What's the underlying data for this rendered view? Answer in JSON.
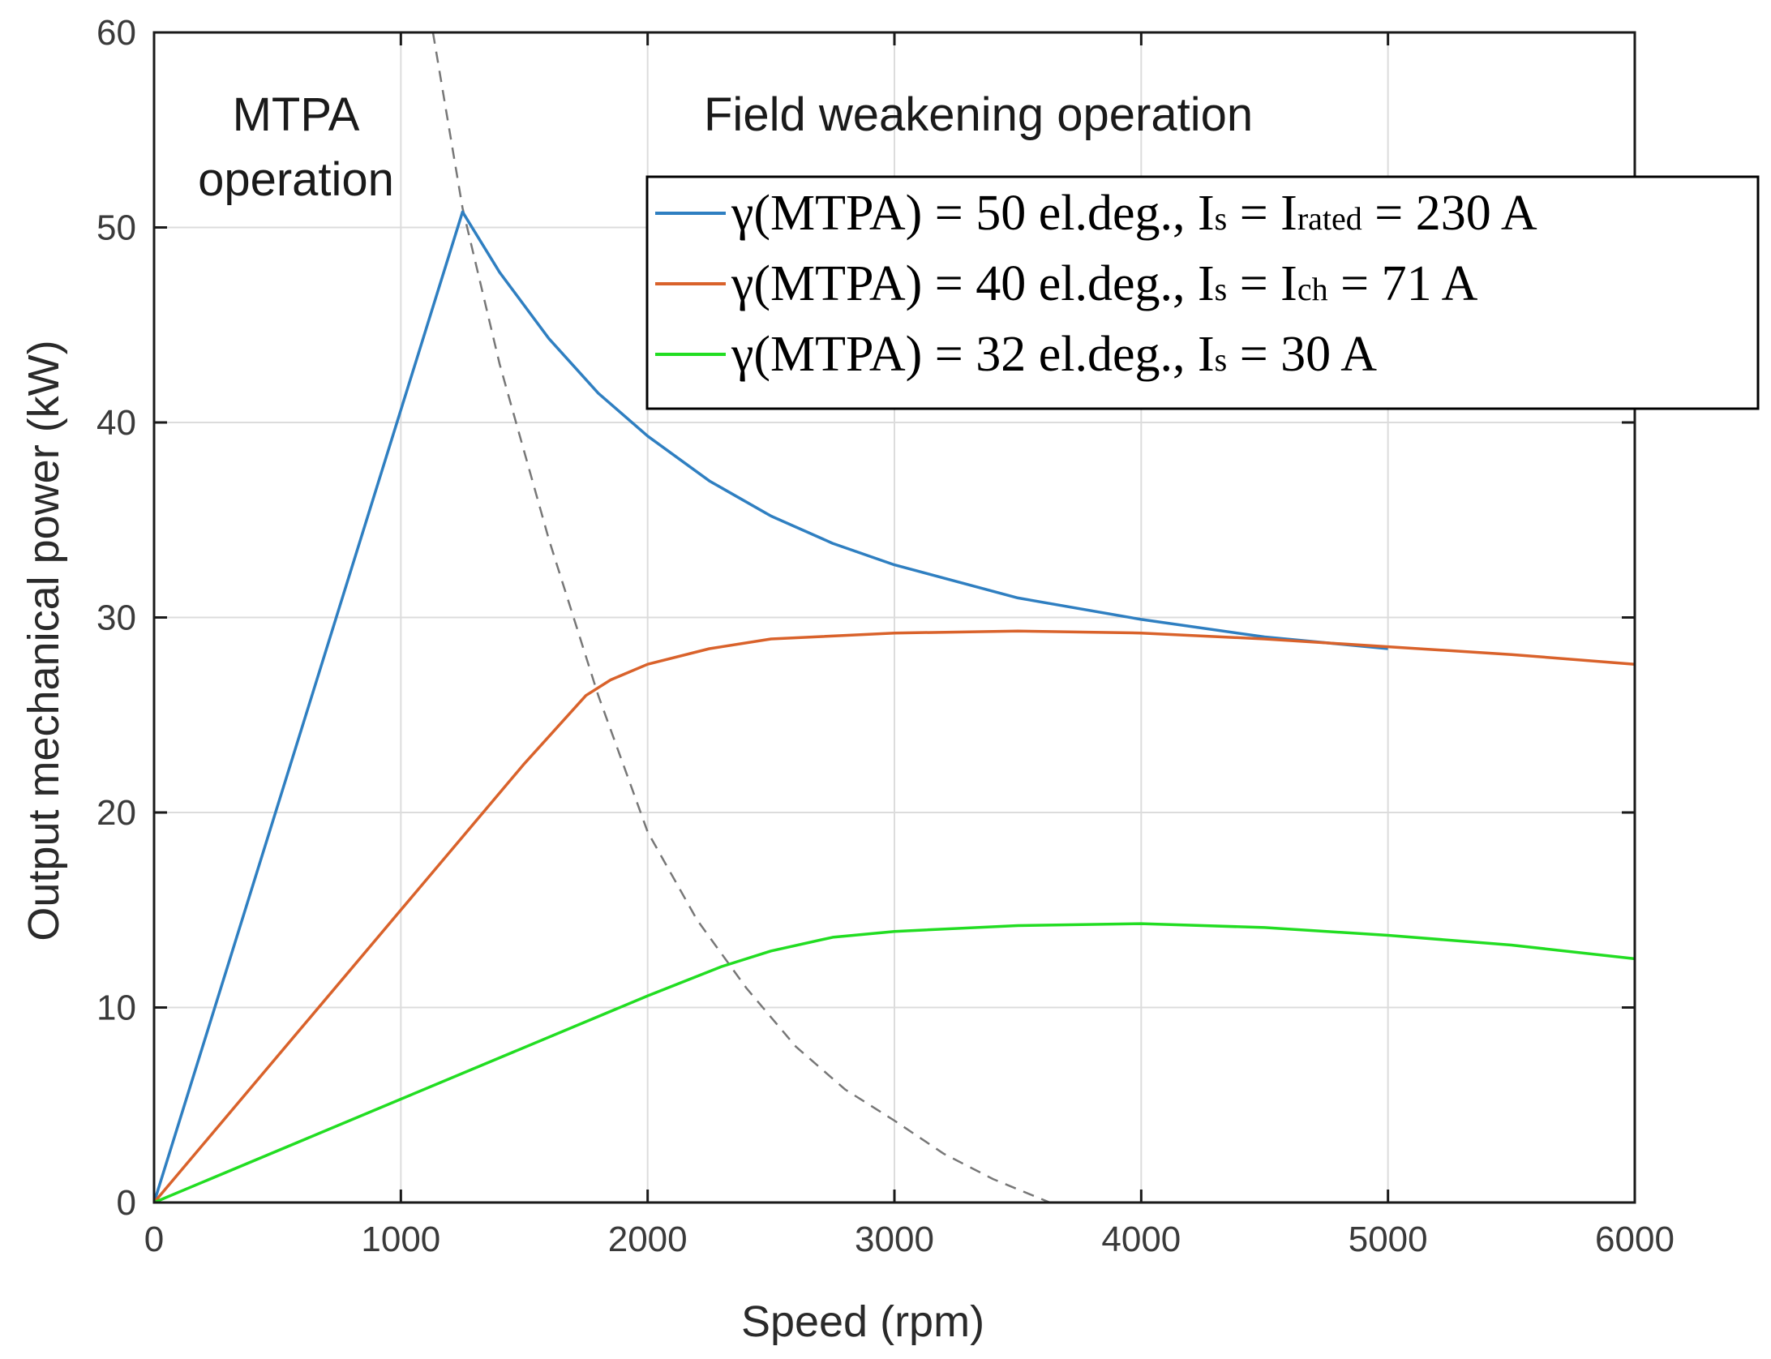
{
  "chart_data": {
    "type": "line",
    "title": "",
    "xlabel": "Speed  (rpm)",
    "ylabel": "Output mechanical power (kW)",
    "xlim": [
      0,
      6000
    ],
    "ylim": [
      0,
      60
    ],
    "xticks": [
      0,
      1000,
      2000,
      3000,
      4000,
      5000,
      6000
    ],
    "yticks": [
      0,
      10,
      20,
      30,
      40,
      50,
      60
    ],
    "grid": true,
    "legend_position": "top-right",
    "annotations": [
      {
        "line1": "MTPA",
        "line2": "operation"
      },
      {
        "line1": "Field weakening operation"
      }
    ],
    "series": [
      {
        "name": "γ(MTPA) = 50 el.deg., Is = Irated = 230 A",
        "legend": {
          "prefix": "γ(MTPA) = 50 el.deg., I",
          "s1": "s",
          "mid": " = I",
          "s2": "rated",
          "suffix": " = 230 A"
        },
        "color": "#2f7fc1",
        "x": [
          0,
          1250,
          1400,
          1600,
          1800,
          2000,
          2250,
          2500,
          2750,
          3000,
          3500,
          4000,
          4500,
          5000
        ],
        "y": [
          0,
          50.8,
          47.7,
          44.3,
          41.5,
          39.3,
          37.0,
          35.2,
          33.8,
          32.7,
          31.0,
          29.9,
          29.0,
          28.4
        ]
      },
      {
        "name": "γ(MTPA) = 40 el.deg., Is = Ich = 71 A",
        "legend": {
          "prefix": "γ(MTPA) = 40 el.deg., I",
          "s1": "s",
          "mid": " = I",
          "s2": "ch",
          "suffix": " = 71 A"
        },
        "color": "#d9622b",
        "x": [
          0,
          1000,
          1500,
          1750,
          1850,
          2000,
          2250,
          2500,
          3000,
          3500,
          4000,
          4500,
          5000,
          5500,
          6000
        ],
        "y": [
          0,
          15.0,
          22.5,
          26.0,
          26.8,
          27.6,
          28.4,
          28.9,
          29.2,
          29.3,
          29.2,
          28.9,
          28.5,
          28.1,
          27.6
        ]
      },
      {
        "name": "γ(MTPA) = 32 el.deg., Is = 30 A",
        "legend": {
          "prefix": "γ(MTPA) = 32 el.deg., I",
          "s1": "s",
          "mid": " = 30 A",
          "s2": "",
          "suffix": ""
        },
        "color": "#22dd22",
        "x": [
          0,
          1000,
          2000,
          2300,
          2500,
          2750,
          3000,
          3500,
          4000,
          4500,
          5000,
          5500,
          6000
        ],
        "y": [
          0,
          5.3,
          10.6,
          12.1,
          12.9,
          13.6,
          13.9,
          14.2,
          14.3,
          14.1,
          13.7,
          13.2,
          12.5
        ]
      }
    ],
    "boundary_curve": {
      "style": "dashed",
      "color": "#777777",
      "x": [
        1130,
        1250,
        1400,
        1600,
        1800,
        2000,
        2200,
        2400,
        2600,
        2800,
        3000,
        3200,
        3400,
        3630
      ],
      "y": [
        60,
        51,
        43,
        34,
        26,
        19,
        14.5,
        11,
        8,
        5.8,
        4.2,
        2.5,
        1.2,
        0
      ]
    }
  }
}
